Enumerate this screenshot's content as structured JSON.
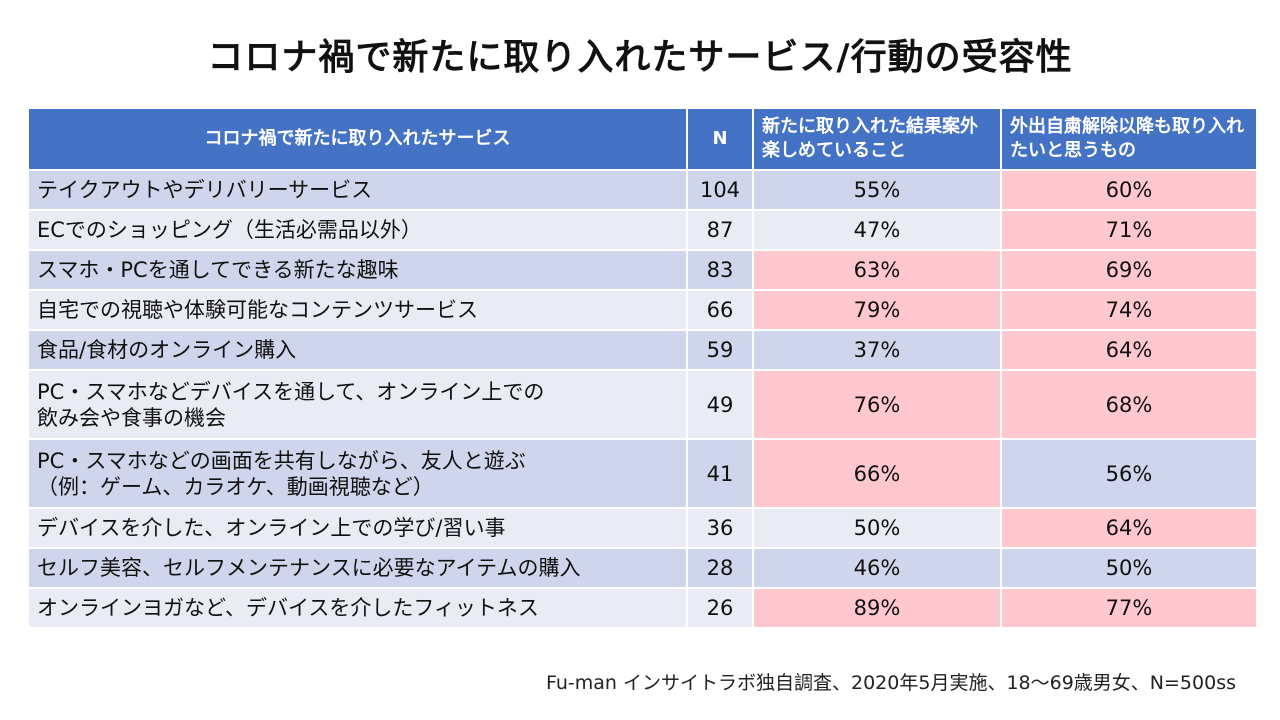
{
  "title": "コロナ禍で新たに取り入れたサービス/行動の受容性",
  "colors": {
    "header": "#4472C4",
    "row_dark": "#CFD5EA",
    "row_light": "#E9EBF5",
    "highlight": "#FFC7CE"
  },
  "table": {
    "headers": [
      "コロナ禍で新たに取り入れたサービス",
      "N",
      "新たに取り入れた結果案外楽しめていること",
      "外出自粛解除以降も取り入れたいと思うもの"
    ],
    "rows": [
      {
        "name": [
          "テイクアウトやデリバリーサービス"
        ],
        "n": "104",
        "enjoy": "55%",
        "continue": "60%",
        "enjoy_hl": false,
        "continue_hl": true
      },
      {
        "name": [
          "ECでのショッピング（生活必需品以外）"
        ],
        "n": "87",
        "enjoy": "47%",
        "continue": "71%",
        "enjoy_hl": false,
        "continue_hl": true
      },
      {
        "name": [
          "スマホ・PCを通してできる新たな趣味"
        ],
        "n": "83",
        "enjoy": "63%",
        "continue": "69%",
        "enjoy_hl": true,
        "continue_hl": true
      },
      {
        "name": [
          "自宅での視聴や体験可能なコンテンツサービス"
        ],
        "n": "66",
        "enjoy": "79%",
        "continue": "74%",
        "enjoy_hl": true,
        "continue_hl": true
      },
      {
        "name": [
          "食品/食材のオンライン購入"
        ],
        "n": "59",
        "enjoy": "37%",
        "continue": "64%",
        "enjoy_hl": false,
        "continue_hl": true
      },
      {
        "name": [
          "PC・スマホなどデバイスを通して、オンライン上での",
          "飲み会や食事の機会"
        ],
        "n": "49",
        "enjoy": "76%",
        "continue": "68%",
        "enjoy_hl": true,
        "continue_hl": true
      },
      {
        "name": [
          "PC・スマホなどの画面を共有しながら、友人と遊ぶ",
          "（例：ゲーム、カラオケ、動画視聴など）"
        ],
        "n": "41",
        "enjoy": "66%",
        "continue": "56%",
        "enjoy_hl": true,
        "continue_hl": false
      },
      {
        "name": [
          "デバイスを介した、オンライン上での学び/習い事"
        ],
        "n": "36",
        "enjoy": "50%",
        "continue": "64%",
        "enjoy_hl": false,
        "continue_hl": true
      },
      {
        "name": [
          "セルフ美容、セルフメンテナンスに必要なアイテムの購入"
        ],
        "n": "28",
        "enjoy": "46%",
        "continue": "50%",
        "enjoy_hl": false,
        "continue_hl": false
      },
      {
        "name": [
          "オンラインヨガなど、デバイスを介したフィットネス"
        ],
        "n": "26",
        "enjoy": "89%",
        "continue": "77%",
        "enjoy_hl": true,
        "continue_hl": true
      }
    ]
  },
  "footer": "Fu-man インサイトラボ独自調査、2020年5月実施、18～69歳男女、N=500ss"
}
